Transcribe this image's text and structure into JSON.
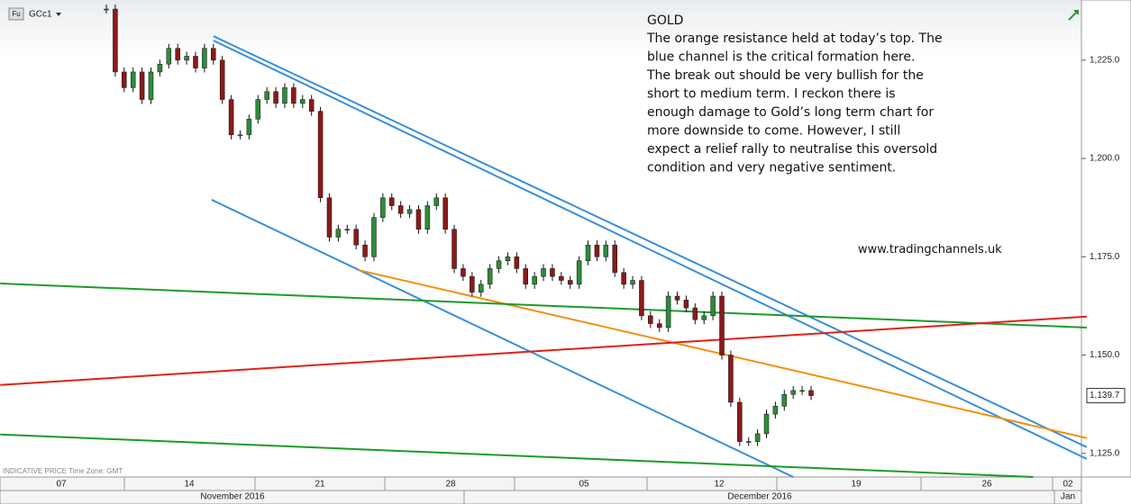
{
  "chart_data": {
    "type": "candlestick",
    "symbol": "GCc1",
    "symbol_tag": "Fu",
    "footer_note": "INDICATIVE PRICE   Time Zone: GMT",
    "annotation_title": "GOLD",
    "annotation_lines": [
      "The orange resistance held at today’s top. The",
      "blue channel is the critical formation here.",
      "The break out should be very bullish for the",
      "short to medium term. I reckon there is",
      "enough damage to Gold’s long term chart for",
      "more downside to come. However, I still",
      "expect a relief rally to neutralise this oversold",
      "condition and very negative sentiment."
    ],
    "website": "www.tradingchannels.uk",
    "up_color": "#2e8b3a",
    "down_color": "#8b1a1a",
    "values": [
      1238,
      1222,
      1218,
      1222,
      1215,
      1222,
      1224,
      1228,
      1225,
      1226,
      1223,
      1228,
      1225,
      1215,
      1206,
      1206,
      1210,
      1215,
      1217,
      1214,
      1218,
      1214,
      1215,
      1212,
      1190,
      1180,
      1182,
      1182,
      1178,
      1175,
      1185,
      1190,
      1188,
      1186,
      1187,
      1182,
      1188,
      1190,
      1182,
      1172,
      1170,
      1166,
      1168,
      1172,
      1174,
      1175,
      1172,
      1168,
      1170,
      1172,
      1170,
      1169,
      1168,
      1174,
      1178,
      1175,
      1178,
      1171,
      1168,
      1169,
      1160,
      1158,
      1157,
      1165,
      1164,
      1162,
      1159,
      1160,
      1165,
      1150,
      1138,
      1128,
      1128,
      1130,
      1135,
      1137,
      1140,
      1141,
      1141,
      1139.7
    ],
    "last_label": "1,139.7",
    "ylim": [
      1119,
      1240.3
    ],
    "yticks": [
      {
        "value": 1125,
        "label": "1,125.0"
      },
      {
        "value": 1150,
        "label": "1,150.0"
      },
      {
        "value": 1175,
        "label": "1,175.0"
      },
      {
        "value": 1200,
        "label": "1,200.0"
      },
      {
        "value": 1225,
        "label": "1,225.0"
      }
    ],
    "xticks": [
      "07",
      "14",
      "21",
      "28",
      "05",
      "12",
      "19",
      "26",
      "02"
    ],
    "months": [
      "November 2016",
      "December 2016",
      "Jan"
    ],
    "trendlines": [
      {
        "color": "#3a8fd6",
        "points": [
          [
            12.0,
            1231.1
          ],
          [
            109.9,
            1126.6
          ]
        ]
      },
      {
        "color": "#3a8fd6",
        "points": [
          [
            12.0,
            1230.0
          ],
          [
            109.9,
            1123.6
          ]
        ]
      },
      {
        "color": "#3a8fd6",
        "points": [
          [
            11.8,
            1189.5
          ],
          [
            77.0,
            1119.0
          ]
        ]
      },
      {
        "color": "#f0900a",
        "points": [
          [
            28.3,
            1171.6
          ],
          [
            109.9,
            1128.9
          ]
        ]
      },
      {
        "color": "#1e9a2a",
        "points": [
          [
            -11.9,
            1168.2
          ],
          [
            109.9,
            1157.0
          ]
        ]
      },
      {
        "color": "#e0201a",
        "points": [
          [
            -11.9,
            1142.4
          ],
          [
            109.9,
            1159.8
          ]
        ]
      },
      {
        "color": "#1e9a2a",
        "points": [
          [
            -11.9,
            1129.8
          ],
          [
            103.9,
            1119.0
          ]
        ]
      }
    ]
  }
}
